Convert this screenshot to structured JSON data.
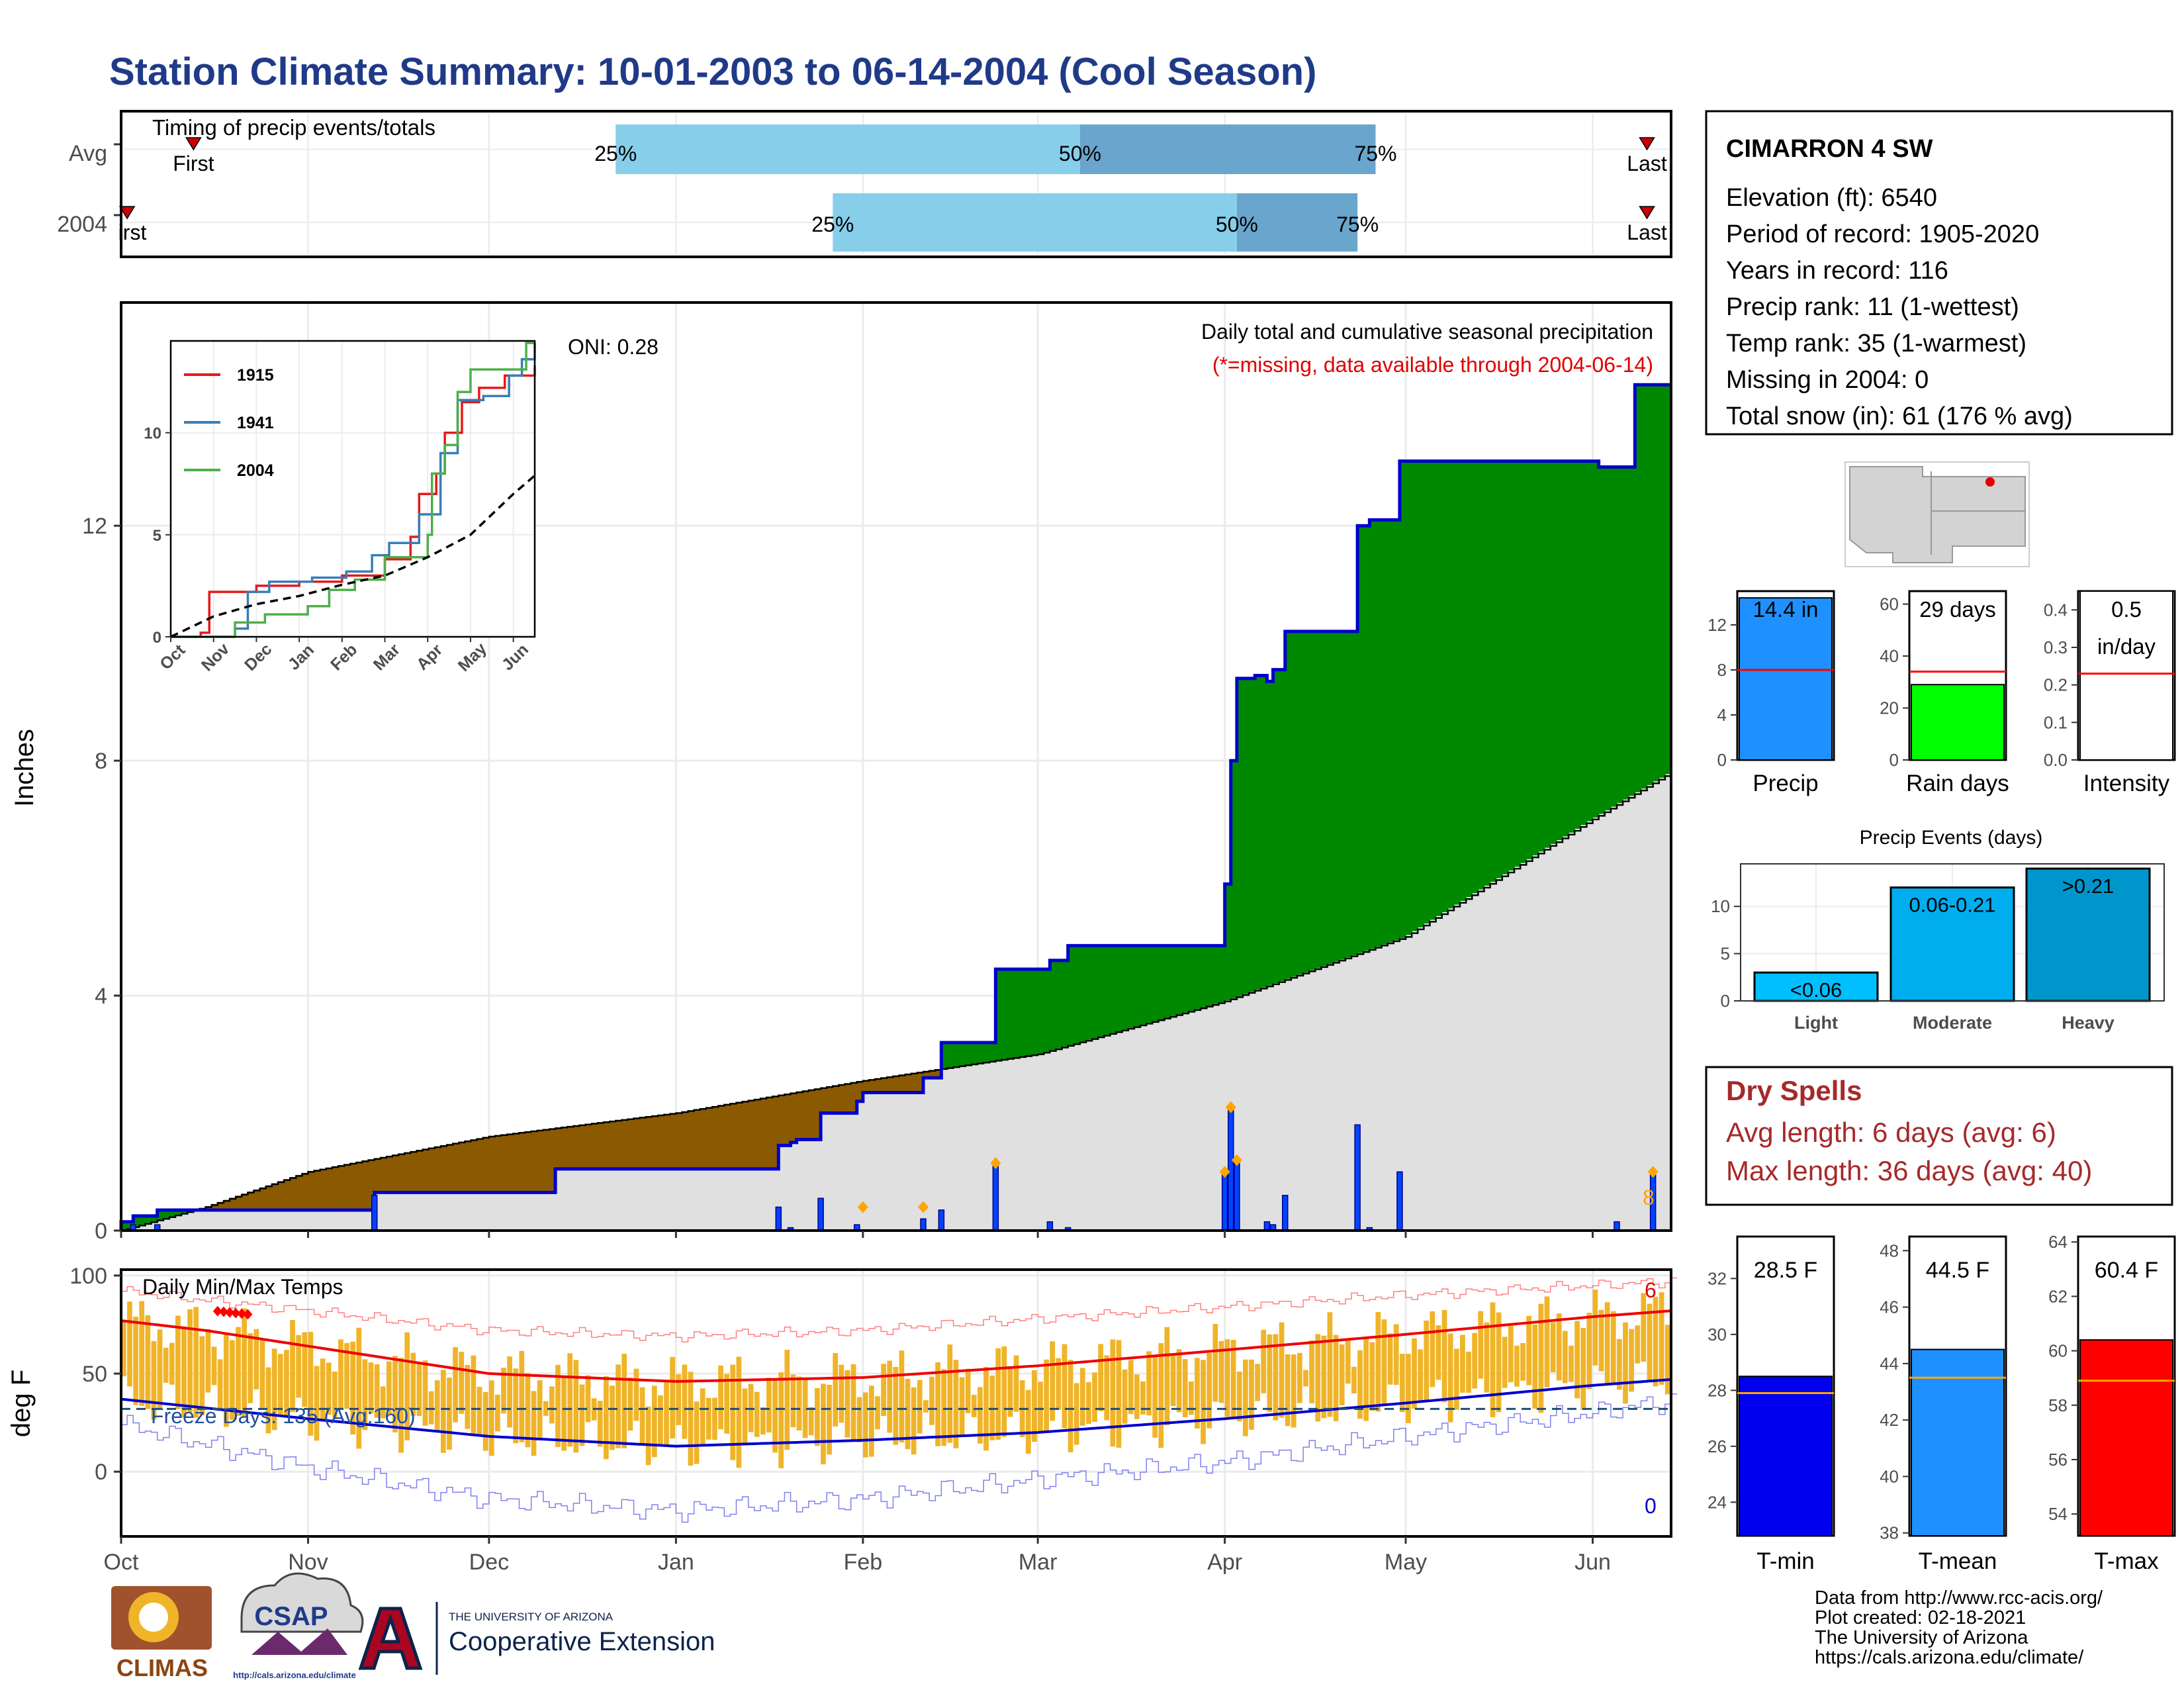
{
  "title": "Station Climate Summary: 10-01-2003 to 06-14-2004 (Cool Season)",
  "timing_panel": {
    "title": "Timing of precip events/totals",
    "rows": [
      {
        "label": "Avg",
        "first_date": "2003-10-13",
        "last_date": "2004-06-10",
        "q25_date": "2003-12-22",
        "q50_date": "2004-03-08",
        "q75_date": "2004-04-26",
        "first_label": "First",
        "last_label": "Last"
      },
      {
        "label": "2004",
        "first_date": "2003-10-02",
        "last_date": "2004-06-10",
        "q25_date": "2004-01-27",
        "q50_date": "2004-04-03",
        "q75_date": "2004-04-23",
        "first_label": "irst",
        "last_label": "Last"
      }
    ],
    "quantile_labels": [
      "25%",
      "50%",
      "75%"
    ],
    "colors": {
      "light": "#87ceeb",
      "dark": "#6aa5cd",
      "marker": "#cc0000"
    }
  },
  "precip_panel": {
    "ylabel": "Inches",
    "oni_label": "ONI: 0.28",
    "legend_title": "Daily total and cumulative seasonal precipitation",
    "missing_note": "(*=missing, data available through 2004-06-14)",
    "right_label": "8",
    "colors": {
      "wet": "#008800",
      "dry": "#8b5a00",
      "normal": "#e0e0e0",
      "observed": "#0000cc",
      "markers": "#ffa500"
    }
  },
  "temp_panel": {
    "title": "Daily Min/Max Temps",
    "ylabel": "deg F",
    "freeze_label": "Freeze Days: 135 (Avg:160)",
    "high_count": "6",
    "low_count": "0",
    "colors": {
      "bars": "#f0b429",
      "max_line": "#ee0000",
      "min_line": "#0000cc",
      "record_max": "#ff8080",
      "record_min": "#8080ee"
    }
  },
  "station": {
    "name": "CIMARRON 4 SW",
    "lines": [
      "Elevation (ft): 6540",
      "Period of record: 1905-2020",
      "Years in record: 116",
      "Precip rank: 11 (1-wettest)",
      "Temp rank: 35 (1-warmest)",
      "Missing in 2004: 0",
      "Total snow (in): 61 (176 % avg)"
    ]
  },
  "summary_bars": [
    {
      "name": "Precip",
      "value": 14.4,
      "avg": 8,
      "label": "14.4 in",
      "ylim": [
        0,
        15
      ],
      "ticks": [
        "0",
        "4",
        "8",
        "12"
      ],
      "tick_values": [
        0,
        4,
        8,
        12
      ],
      "color": "#1e90ff"
    },
    {
      "name": "Rain days",
      "value": 29,
      "avg": 34,
      "label": "29 days",
      "ylim": [
        0,
        65
      ],
      "ticks": [
        "0",
        "20",
        "40",
        "60"
      ],
      "tick_values": [
        0,
        20,
        40,
        60
      ],
      "color": "#00ff00"
    },
    {
      "name": "Intensity",
      "value": 0.5,
      "avg": 0.23,
      "label": "0.5\nin/day",
      "ylim": [
        0,
        0.45
      ],
      "ticks": [
        "0.0",
        "0.1",
        "0.2",
        "0.3",
        "0.4"
      ],
      "tick_values": [
        0,
        0.1,
        0.2,
        0.3,
        0.4
      ],
      "color": "#ffffff"
    }
  ],
  "precip_events": {
    "title": "Precip Events (days)",
    "categories": [
      "Light",
      "Moderate",
      "Heavy"
    ],
    "labels": [
      "<0.06",
      "0.06-0.21",
      ">0.21"
    ],
    "values": [
      3,
      12,
      14
    ],
    "ylim": [
      0,
      14.5
    ],
    "ticks": [
      "0",
      "5",
      "10"
    ],
    "colors": [
      "#00bfff",
      "#00aeef",
      "#0096cc"
    ]
  },
  "dry_spells": {
    "title": "Dry Spells",
    "avg_length": "Avg length: 6 days (avg: 6)",
    "max_length": "Max length: 36 days (avg: 40)",
    "color": "#a52a2a"
  },
  "temp_bars": [
    {
      "name": "T-min",
      "value": 28.5,
      "avg": 27.9,
      "label": "28.5 F",
      "ylim": [
        22.8,
        33.5
      ],
      "ticks": [
        "24",
        "26",
        "28",
        "30",
        "32"
      ],
      "tick_values": [
        24,
        26,
        28,
        30,
        32
      ],
      "color": "#0000ee"
    },
    {
      "name": "T-mean",
      "value": 44.5,
      "avg": 43.5,
      "label": "44.5 F",
      "ylim": [
        37.9,
        48.5
      ],
      "ticks": [
        "38",
        "40",
        "42",
        "44",
        "46",
        "48"
      ],
      "tick_values": [
        38,
        40,
        42,
        44,
        46,
        48
      ],
      "color": "#1e90ff"
    },
    {
      "name": "T-max",
      "value": 60.4,
      "avg": 58.9,
      "label": "60.4 F",
      "ylim": [
        53.2,
        64.2
      ],
      "ticks": [
        "54",
        "56",
        "58",
        "60",
        "62",
        "64"
      ],
      "tick_values": [
        54,
        56,
        58,
        60,
        62,
        64
      ],
      "color": "#ff0000"
    }
  ],
  "footer": {
    "lines": [
      "Data from http://www.rcc-acis.org/",
      "Plot created: 02-18-2021",
      "The University of Arizona",
      "https://cals.arizona.edu/climate/"
    ],
    "logos": {
      "climas": "CLIMAS",
      "csap": "CSAP",
      "csap_url": "http://cals.arizona.edu/climate",
      "ua_top": "THE UNIVERSITY OF ARIZONA",
      "ua_bottom": "Cooperative Extension"
    }
  },
  "chart_data": {
    "type": "line",
    "x_range": [
      "2003-10-01",
      "2004-06-14"
    ],
    "month_labels": [
      "Oct",
      "Nov",
      "Dec",
      "Jan",
      "Feb",
      "Mar",
      "Apr",
      "May",
      "Jun"
    ],
    "month_dates": [
      "2003-10-01",
      "2003-11-01",
      "2003-12-01",
      "2004-01-01",
      "2004-02-01",
      "2004-03-01",
      "2004-04-01",
      "2004-05-01",
      "2004-06-01"
    ],
    "precip": {
      "ylim": [
        0,
        15.8
      ],
      "yticks": [
        0,
        4,
        8,
        12
      ],
      "observed_cumulative": [
        [
          "2003-10-01",
          0.15
        ],
        [
          "2003-10-03",
          0.25
        ],
        [
          "2003-10-07",
          0.35
        ],
        [
          "2003-11-12",
          0.65
        ],
        [
          "2003-12-12",
          1.05
        ],
        [
          "2004-01-18",
          1.45
        ],
        [
          "2004-01-20",
          1.5
        ],
        [
          "2004-01-21",
          1.55
        ],
        [
          "2004-01-25",
          2.0
        ],
        [
          "2004-01-31",
          2.2
        ],
        [
          "2004-02-01",
          2.35
        ],
        [
          "2004-02-11",
          2.6
        ],
        [
          "2004-02-14",
          3.2
        ],
        [
          "2004-02-23",
          4.45
        ],
        [
          "2004-03-03",
          4.6
        ],
        [
          "2004-03-06",
          4.85
        ],
        [
          "2004-04-01",
          5.9
        ],
        [
          "2004-04-02",
          8.0
        ],
        [
          "2004-04-03",
          9.4
        ],
        [
          "2004-04-06",
          9.45
        ],
        [
          "2004-04-08",
          9.35
        ],
        [
          "2004-04-09",
          9.55
        ],
        [
          "2004-04-11",
          10.2
        ],
        [
          "2004-04-23",
          12.0
        ],
        [
          "2004-04-25",
          12.1
        ],
        [
          "2004-04-30",
          13.1
        ],
        [
          "2004-06-02",
          13.0
        ],
        [
          "2004-06-08",
          14.4
        ],
        [
          "2004-06-14",
          14.4
        ]
      ],
      "normal_cumulative": [
        [
          "2003-10-01",
          0.0
        ],
        [
          "2003-10-15",
          0.4
        ],
        [
          "2003-11-01",
          1.0
        ],
        [
          "2003-12-01",
          1.6
        ],
        [
          "2004-01-01",
          2.0
        ],
        [
          "2004-02-01",
          2.55
        ],
        [
          "2004-03-01",
          3.0
        ],
        [
          "2004-04-01",
          3.9
        ],
        [
          "2004-05-01",
          5.0
        ],
        [
          "2004-06-01",
          7.0
        ],
        [
          "2004-06-14",
          7.8
        ]
      ],
      "daily_totals": [
        [
          "2003-10-03",
          0.1
        ],
        [
          "2003-10-07",
          0.1
        ],
        [
          "2003-11-12",
          0.6
        ],
        [
          "2004-01-18",
          0.4
        ],
        [
          "2004-01-20",
          0.05
        ],
        [
          "2004-01-25",
          0.55
        ],
        [
          "2004-01-31",
          0.1
        ],
        [
          "2004-02-11",
          0.2
        ],
        [
          "2004-02-14",
          0.35
        ],
        [
          "2004-02-23",
          1.15
        ],
        [
          "2004-03-03",
          0.15
        ],
        [
          "2004-03-06",
          0.05
        ],
        [
          "2004-04-01",
          1.0
        ],
        [
          "2004-04-02",
          2.1
        ],
        [
          "2004-04-03",
          1.2
        ],
        [
          "2004-04-08",
          0.15
        ],
        [
          "2004-04-09",
          0.1
        ],
        [
          "2004-04-11",
          0.6
        ],
        [
          "2004-04-23",
          1.8
        ],
        [
          "2004-04-25",
          0.05
        ],
        [
          "2004-04-30",
          1.0
        ],
        [
          "2004-06-05",
          0.15
        ],
        [
          "2004-06-11",
          0.95
        ]
      ],
      "marked_events": [
        [
          "2004-02-01",
          0.4
        ],
        [
          "2004-02-11",
          0.4
        ],
        [
          "2004-02-23",
          1.15
        ],
        [
          "2004-04-01",
          1.0
        ],
        [
          "2004-04-02",
          2.1
        ],
        [
          "2004-04-03",
          1.2
        ],
        [
          "2004-06-11",
          1.0
        ]
      ]
    },
    "inset": {
      "ylim": [
        0,
        14.5
      ],
      "yticks": [
        0,
        5,
        10
      ],
      "series": [
        {
          "name": "1915",
          "color": "#e41a1c",
          "points": [
            [
              0,
              0
            ],
            [
              0.7,
              0.2
            ],
            [
              0.9,
              2.2
            ],
            [
              2.0,
              2.5
            ],
            [
              3.0,
              2.7
            ],
            [
              4.0,
              3.0
            ],
            [
              5.0,
              3.8
            ],
            [
              5.6,
              4.9
            ],
            [
              5.8,
              7.0
            ],
            [
              6.2,
              8.0
            ],
            [
              6.4,
              10.0
            ],
            [
              6.8,
              11.5
            ],
            [
              7.2,
              12.2
            ],
            [
              7.8,
              12.8
            ],
            [
              8.5,
              13.3
            ]
          ]
        },
        {
          "name": "1941",
          "color": "#377eb8",
          "points": [
            [
              0,
              0
            ],
            [
              1.5,
              0.4
            ],
            [
              1.8,
              2.2
            ],
            [
              2.3,
              2.7
            ],
            [
              3.3,
              2.9
            ],
            [
              4.1,
              3.2
            ],
            [
              4.7,
              4.0
            ],
            [
              5.1,
              4.6
            ],
            [
              5.8,
              6.0
            ],
            [
              6.3,
              9.0
            ],
            [
              6.7,
              11.6
            ],
            [
              7.3,
              11.8
            ],
            [
              7.9,
              12.8
            ],
            [
              8.2,
              13.6
            ],
            [
              8.5,
              14.4
            ]
          ]
        },
        {
          "name": "2004",
          "color": "#4daf4a",
          "points": [
            [
              0,
              0
            ],
            [
              1.5,
              0.7
            ],
            [
              2.2,
              1.1
            ],
            [
              3.2,
              1.5
            ],
            [
              3.7,
              2.3
            ],
            [
              4.3,
              2.8
            ],
            [
              5.0,
              3.9
            ],
            [
              6.0,
              5.0
            ],
            [
              6.1,
              8.0
            ],
            [
              6.4,
              9.4
            ],
            [
              6.7,
              12.0
            ],
            [
              7.0,
              13.1
            ],
            [
              8.0,
              13.1
            ],
            [
              8.3,
              14.4
            ],
            [
              8.5,
              14.4
            ]
          ]
        }
      ],
      "average": [
        [
          0,
          0
        ],
        [
          1,
          1.0
        ],
        [
          2,
          1.6
        ],
        [
          3,
          2.0
        ],
        [
          4,
          2.55
        ],
        [
          5,
          3.0
        ],
        [
          6,
          3.9
        ],
        [
          7,
          5.0
        ],
        [
          8,
          7.0
        ],
        [
          8.5,
          7.9
        ]
      ]
    },
    "temps": {
      "ylim": [
        -33,
        103
      ],
      "yticks": [
        0,
        50,
        100
      ],
      "avg_max_line": [
        [
          "2003-10-01",
          77
        ],
        [
          "2003-10-15",
          72
        ],
        [
          "2003-11-01",
          64
        ],
        [
          "2003-12-01",
          50
        ],
        [
          "2004-01-01",
          46
        ],
        [
          "2004-02-01",
          48
        ],
        [
          "2004-03-01",
          54
        ],
        [
          "2004-04-01",
          62
        ],
        [
          "2004-05-01",
          70
        ],
        [
          "2004-06-01",
          79
        ],
        [
          "2004-06-14",
          82
        ]
      ],
      "avg_min_line": [
        [
          "2003-10-01",
          37
        ],
        [
          "2003-11-01",
          27
        ],
        [
          "2003-12-01",
          18
        ],
        [
          "2004-01-01",
          13
        ],
        [
          "2004-02-01",
          16
        ],
        [
          "2004-03-01",
          20
        ],
        [
          "2004-04-01",
          27
        ],
        [
          "2004-05-01",
          35
        ],
        [
          "2004-06-01",
          44
        ],
        [
          "2004-06-14",
          47
        ]
      ],
      "record_max_line": [
        [
          "2003-10-01",
          92
        ],
        [
          "2003-11-01",
          82
        ],
        [
          "2003-12-01",
          72
        ],
        [
          "2004-01-01",
          69
        ],
        [
          "2004-02-01",
          72
        ],
        [
          "2004-03-01",
          78
        ],
        [
          "2004-04-01",
          84
        ],
        [
          "2004-05-01",
          90
        ],
        [
          "2004-06-01",
          95
        ],
        [
          "2004-06-14",
          97
        ]
      ],
      "record_min_line": [
        [
          "2003-10-01",
          24
        ],
        [
          "2003-11-01",
          2
        ],
        [
          "2003-12-01",
          -14
        ],
        [
          "2004-01-01",
          -20
        ],
        [
          "2004-02-01",
          -14
        ],
        [
          "2004-03-01",
          -4
        ],
        [
          "2004-04-01",
          5
        ],
        [
          "2004-05-01",
          18
        ],
        [
          "2004-06-01",
          30
        ],
        [
          "2004-06-14",
          36
        ]
      ],
      "freeze_line": 32,
      "record_highs": [
        "2003-10-17",
        "2003-10-18",
        "2003-10-19",
        "2003-10-20",
        "2003-10-21",
        "2003-10-22"
      ]
    }
  }
}
